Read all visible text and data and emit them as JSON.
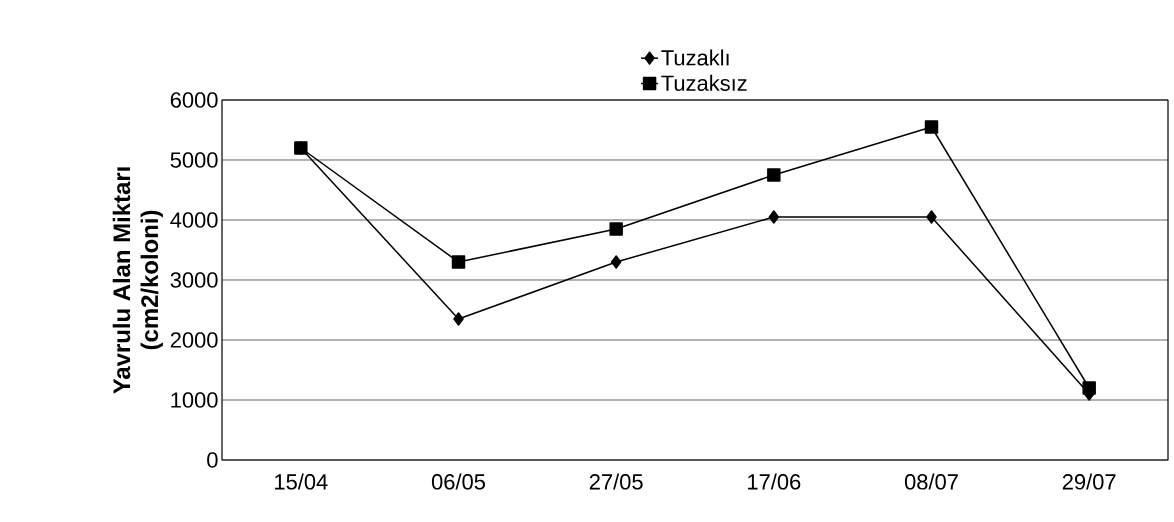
{
  "chart_data": {
    "type": "line",
    "ylabel": "Yavrulu Alan Miktarı\n(cm2/koloni)",
    "categories": [
      "15/04",
      "06/05",
      "27/05",
      "17/06",
      "08/07",
      "29/07"
    ],
    "series": [
      {
        "name": "Tuzaklı",
        "color": "#000000",
        "marker": "diamond",
        "values": [
          5200,
          2350,
          3300,
          4050,
          4050,
          1100
        ]
      },
      {
        "name": "Tuzaksız",
        "color": "#000000",
        "marker": "square",
        "values": [
          5200,
          3300,
          3850,
          4750,
          5550,
          1200
        ]
      }
    ],
    "ylim": [
      0,
      6000
    ],
    "yticks": [
      0,
      1000,
      2000,
      3000,
      4000,
      5000,
      6000
    ],
    "grid": "y",
    "legend": "top",
    "line_style": "solid"
  }
}
